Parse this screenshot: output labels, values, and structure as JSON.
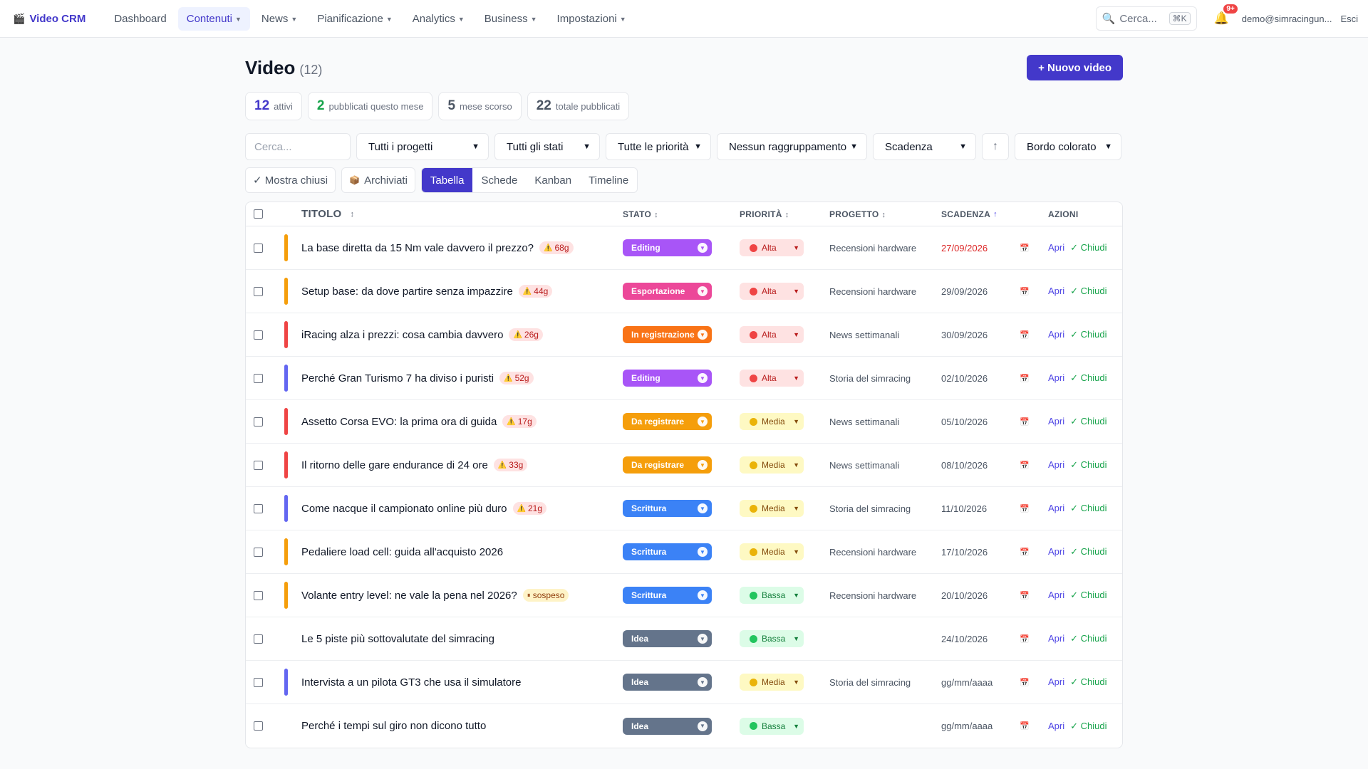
{
  "nav": {
    "brand": "Video CRM",
    "brand_icon": "clapperboard-icon",
    "items": [
      {
        "label": "Dashboard",
        "dropdown": false,
        "active": false
      },
      {
        "label": "Contenuti",
        "dropdown": true,
        "active": true
      },
      {
        "label": "News",
        "dropdown": true,
        "active": false
      },
      {
        "label": "Pianificazione",
        "dropdown": true,
        "active": false
      },
      {
        "label": "Analytics",
        "dropdown": true,
        "active": false
      },
      {
        "label": "Business",
        "dropdown": true,
        "active": false
      },
      {
        "label": "Impostazioni",
        "dropdown": true,
        "active": false
      }
    ],
    "search_label": "Cerca...",
    "search_kbd": "⌘K",
    "notif_count": "9+",
    "user": "demo@simracingun...",
    "logout": "Esci"
  },
  "page": {
    "title": "Video",
    "count": "(12)",
    "new_button": "+ Nuovo video"
  },
  "stats": [
    {
      "num": "12",
      "label": "attivi",
      "color": "#4338ca"
    },
    {
      "num": "2",
      "label": "pubblicati questo mese",
      "color": "#16a34a"
    },
    {
      "num": "5",
      "label": "mese scorso",
      "color": "#4b5563"
    },
    {
      "num": "22",
      "label": "totale pubblicati",
      "color": "#4b5563"
    }
  ],
  "filters": {
    "search_placeholder": "Cerca...",
    "project": "Tutti i progetti",
    "status": "Tutti gli stati",
    "priority": "Tutte le priorità",
    "grouping": "Nessun raggruppamento",
    "sort": "Scadenza",
    "sort_dir_icon": "↑",
    "border": "Bordo colorato"
  },
  "views": {
    "show_closed": "✓ Mostra chiusi",
    "archived": "Archiviati",
    "tabs": [
      "Tabella",
      "Schede",
      "Kanban",
      "Timeline"
    ],
    "active_tab": "Tabella"
  },
  "table": {
    "headers": {
      "title": "TITOLO",
      "status": "STATO",
      "priority": "PRIORITÀ",
      "project": "PROGETTO",
      "due": "SCADENZA",
      "actions": "AZIONI"
    },
    "actions": {
      "open": "Apri",
      "close": "✓ Chiudi"
    },
    "rows": [
      {
        "title": "La base diretta da 15 Nm vale davvero il prezzo?",
        "tag": "68g",
        "tag_type": "warn",
        "bar": "#f59e0b",
        "status": "Editing",
        "status_color": "#a855f7",
        "priority": "Alta",
        "project": "Recensioni hardware",
        "due": "27/09/2026",
        "due_overdue": true
      },
      {
        "title": "Setup base: da dove partire senza impazzire",
        "tag": "44g",
        "tag_type": "warn",
        "bar": "#f59e0b",
        "status": "Esportazione",
        "status_color": "#ec4899",
        "priority": "Alta",
        "project": "Recensioni hardware",
        "due": "29/09/2026",
        "due_overdue": false
      },
      {
        "title": "iRacing alza i prezzi: cosa cambia davvero",
        "tag": "26g",
        "tag_type": "warn",
        "bar": "#ef4444",
        "status": "In registrazione",
        "status_color": "#f97316",
        "priority": "Alta",
        "project": "News settimanali",
        "due": "30/09/2026",
        "due_overdue": false
      },
      {
        "title": "Perché Gran Turismo 7 ha diviso i puristi",
        "tag": "52g",
        "tag_type": "warn",
        "bar": "#6366f1",
        "status": "Editing",
        "status_color": "#a855f7",
        "priority": "Alta",
        "project": "Storia del simracing",
        "due": "02/10/2026",
        "due_overdue": false
      },
      {
        "title": "Assetto Corsa EVO: la prima ora di guida",
        "tag": "17g",
        "tag_type": "warn",
        "bar": "#ef4444",
        "status": "Da registrare",
        "status_color": "#f59e0b",
        "priority": "Media",
        "project": "News settimanali",
        "due": "05/10/2026",
        "due_overdue": false
      },
      {
        "title": "Il ritorno delle gare endurance di 24 ore",
        "tag": "33g",
        "tag_type": "warn",
        "bar": "#ef4444",
        "status": "Da registrare",
        "status_color": "#f59e0b",
        "priority": "Media",
        "project": "News settimanali",
        "due": "08/10/2026",
        "due_overdue": false
      },
      {
        "title": "Come nacque il campionato online più duro",
        "tag": "21g",
        "tag_type": "warn",
        "bar": "#6366f1",
        "status": "Scrittura",
        "status_color": "#3b82f6",
        "priority": "Media",
        "project": "Storia del simracing",
        "due": "11/10/2026",
        "due_overdue": false
      },
      {
        "title": "Pedaliere load cell: guida all'acquisto 2026",
        "tag": "",
        "tag_type": "",
        "bar": "#f59e0b",
        "status": "Scrittura",
        "status_color": "#3b82f6",
        "priority": "Media",
        "project": "Recensioni hardware",
        "due": "17/10/2026",
        "due_overdue": false
      },
      {
        "title": "Volante entry level: ne vale la pena nel 2026?",
        "tag": "sospeso",
        "tag_type": "susp",
        "bar": "#f59e0b",
        "status": "Scrittura",
        "status_color": "#3b82f6",
        "priority": "Bassa",
        "project": "Recensioni hardware",
        "due": "20/10/2026",
        "due_overdue": false
      },
      {
        "title": "Le 5 piste più sottovalutate del simracing",
        "tag": "",
        "tag_type": "",
        "bar": "",
        "status": "Idea",
        "status_color": "#64748b",
        "priority": "Bassa",
        "project": "",
        "due": "24/10/2026",
        "due_overdue": false
      },
      {
        "title": "Intervista a un pilota GT3 che usa il simulatore",
        "tag": "",
        "tag_type": "",
        "bar": "#6366f1",
        "status": "Idea",
        "status_color": "#64748b",
        "priority": "Media",
        "project": "Storia del simracing",
        "due": "gg/mm/aaaa",
        "due_overdue": false
      },
      {
        "title": "Perché i tempi sul giro non dicono tutto",
        "tag": "",
        "tag_type": "",
        "bar": "",
        "status": "Idea",
        "status_color": "#64748b",
        "priority": "Bassa",
        "project": "",
        "due": "gg/mm/aaaa",
        "due_overdue": false
      }
    ]
  },
  "priority_styles": {
    "Alta": {
      "bg": "#fee2e2",
      "dot": "#ef4444",
      "text": "#b91c1c"
    },
    "Media": {
      "bg": "#fef9c3",
      "dot": "#eab308",
      "text": "#854d0e"
    },
    "Bassa": {
      "bg": "#dcfce7",
      "dot": "#22c55e",
      "text": "#15803d"
    }
  }
}
